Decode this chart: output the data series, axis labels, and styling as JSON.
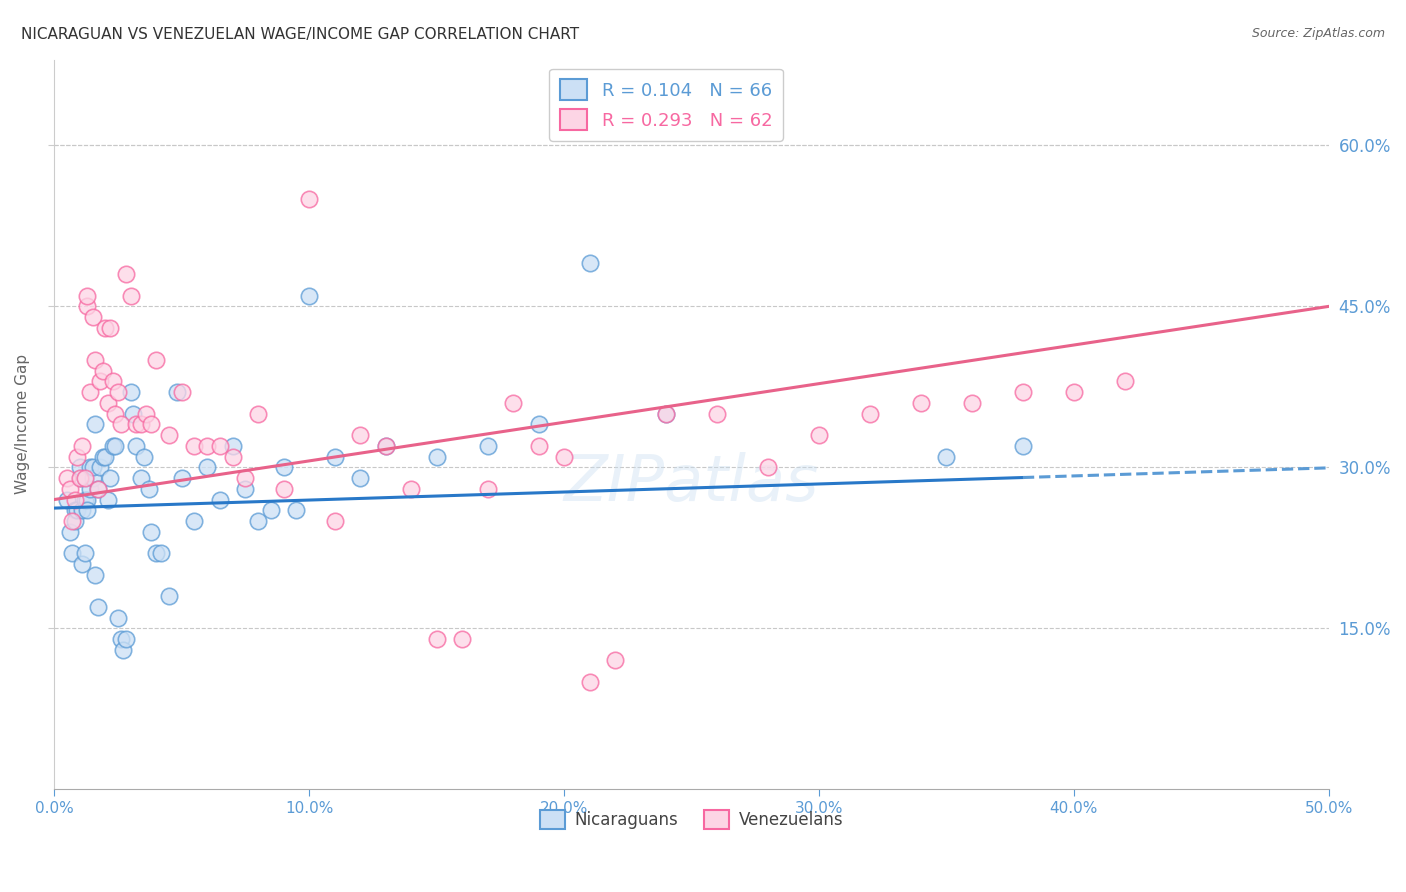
{
  "title": "NICARAGUAN VS VENEZUELAN WAGE/INCOME GAP CORRELATION CHART",
  "source": "Source: ZipAtlas.com",
  "ylabel_left": "Wage/Income Gap",
  "x_tick_labels": [
    "0.0%",
    "10.0%",
    "20.0%",
    "30.0%",
    "40.0%",
    "50.0%"
  ],
  "x_tick_values": [
    0.0,
    0.1,
    0.2,
    0.3,
    0.4,
    0.5
  ],
  "y_tick_labels": [
    "60.0%",
    "45.0%",
    "30.0%",
    "15.0%"
  ],
  "y_tick_values": [
    0.6,
    0.45,
    0.3,
    0.15
  ],
  "xlim": [
    0.0,
    0.5
  ],
  "ylim": [
    0.0,
    0.68
  ],
  "legend_entries": [
    {
      "label": "R = 0.104   N = 66",
      "color": "#5b9bd5"
    },
    {
      "label": "R = 0.293   N = 62",
      "color": "#f768a1"
    }
  ],
  "nicaraguan_color": "#5b9bd5",
  "venezuelan_color": "#f768a1",
  "background_color": "#ffffff",
  "grid_color": "#c8c8c8",
  "title_fontsize": 11,
  "tick_label_color": "#5b9bd5",
  "nic_line_intercept": 0.262,
  "nic_line_slope": 0.075,
  "ven_line_intercept": 0.27,
  "ven_line_slope": 0.36,
  "nicaraguans_x": [
    0.005,
    0.006,
    0.007,
    0.008,
    0.008,
    0.009,
    0.01,
    0.01,
    0.011,
    0.011,
    0.012,
    0.012,
    0.012,
    0.013,
    0.013,
    0.014,
    0.014,
    0.015,
    0.015,
    0.016,
    0.016,
    0.017,
    0.017,
    0.018,
    0.019,
    0.02,
    0.021,
    0.022,
    0.023,
    0.024,
    0.025,
    0.026,
    0.027,
    0.028,
    0.03,
    0.031,
    0.032,
    0.034,
    0.035,
    0.037,
    0.038,
    0.04,
    0.042,
    0.045,
    0.048,
    0.05,
    0.055,
    0.06,
    0.065,
    0.07,
    0.075,
    0.08,
    0.085,
    0.09,
    0.095,
    0.1,
    0.11,
    0.12,
    0.13,
    0.15,
    0.17,
    0.19,
    0.21,
    0.24,
    0.35,
    0.38
  ],
  "nicaraguans_y": [
    0.27,
    0.24,
    0.22,
    0.26,
    0.25,
    0.26,
    0.29,
    0.3,
    0.26,
    0.21,
    0.22,
    0.27,
    0.29,
    0.27,
    0.26,
    0.28,
    0.3,
    0.29,
    0.3,
    0.34,
    0.2,
    0.17,
    0.28,
    0.3,
    0.31,
    0.31,
    0.27,
    0.29,
    0.32,
    0.32,
    0.16,
    0.14,
    0.13,
    0.14,
    0.37,
    0.35,
    0.32,
    0.29,
    0.31,
    0.28,
    0.24,
    0.22,
    0.22,
    0.18,
    0.37,
    0.29,
    0.25,
    0.3,
    0.27,
    0.32,
    0.28,
    0.25,
    0.26,
    0.3,
    0.26,
    0.46,
    0.31,
    0.29,
    0.32,
    0.31,
    0.32,
    0.34,
    0.49,
    0.35,
    0.31,
    0.32
  ],
  "venezuelans_x": [
    0.005,
    0.006,
    0.007,
    0.008,
    0.009,
    0.01,
    0.011,
    0.012,
    0.013,
    0.013,
    0.014,
    0.015,
    0.016,
    0.017,
    0.018,
    0.019,
    0.02,
    0.021,
    0.022,
    0.023,
    0.024,
    0.025,
    0.026,
    0.028,
    0.03,
    0.032,
    0.034,
    0.036,
    0.038,
    0.04,
    0.045,
    0.05,
    0.055,
    0.06,
    0.065,
    0.07,
    0.075,
    0.08,
    0.09,
    0.1,
    0.11,
    0.12,
    0.13,
    0.14,
    0.15,
    0.16,
    0.17,
    0.18,
    0.19,
    0.2,
    0.21,
    0.22,
    0.24,
    0.26,
    0.28,
    0.3,
    0.32,
    0.34,
    0.36,
    0.38,
    0.4,
    0.42
  ],
  "venezuelans_y": [
    0.29,
    0.28,
    0.25,
    0.27,
    0.31,
    0.29,
    0.32,
    0.29,
    0.45,
    0.46,
    0.37,
    0.44,
    0.4,
    0.28,
    0.38,
    0.39,
    0.43,
    0.36,
    0.43,
    0.38,
    0.35,
    0.37,
    0.34,
    0.48,
    0.46,
    0.34,
    0.34,
    0.35,
    0.34,
    0.4,
    0.33,
    0.37,
    0.32,
    0.32,
    0.32,
    0.31,
    0.29,
    0.35,
    0.28,
    0.55,
    0.25,
    0.33,
    0.32,
    0.28,
    0.14,
    0.14,
    0.28,
    0.36,
    0.32,
    0.31,
    0.1,
    0.12,
    0.35,
    0.35,
    0.3,
    0.33,
    0.35,
    0.36,
    0.36,
    0.37,
    0.37,
    0.38
  ]
}
